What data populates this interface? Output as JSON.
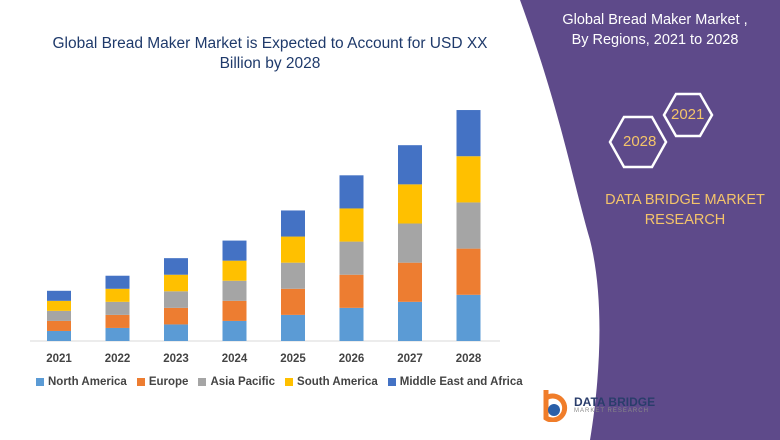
{
  "chart_data": {
    "type": "bar",
    "stacked": true,
    "title": "Global Bread Maker Market is Expected to Account for USD XX Billion by 2028",
    "categories": [
      "2021",
      "2022",
      "2023",
      "2024",
      "2025",
      "2026",
      "2027",
      "2028"
    ],
    "series": [
      {
        "name": "North America",
        "color": "#5b9bd5",
        "values": [
          10,
          13,
          16.5,
          20,
          26,
          33,
          39,
          46
        ]
      },
      {
        "name": "Europe",
        "color": "#ed7d31",
        "values": [
          10,
          13,
          16.5,
          20,
          26,
          33,
          39,
          46
        ]
      },
      {
        "name": "Asia Pacific",
        "color": "#a5a5a5",
        "values": [
          10,
          13,
          16.5,
          20,
          26,
          33,
          39,
          46
        ]
      },
      {
        "name": "South America",
        "color": "#ffc000",
        "values": [
          10,
          13,
          16.5,
          20,
          26,
          33,
          39,
          46
        ]
      },
      {
        "name": "Middle East and Africa",
        "color": "#4472c4",
        "values": [
          10,
          13,
          16.5,
          20,
          26,
          33,
          39,
          46
        ]
      }
    ],
    "ylim": [
      0,
      240
    ],
    "y_axis_shown": false,
    "grid": false,
    "legend_placement": "bottom"
  },
  "side_panel": {
    "title_line1": "Global Bread Maker Market ,",
    "title_line2": "By Regions,  2021 to 2028",
    "hex_start": "2021",
    "hex_end": "2028",
    "brand_line1": "DATA BRIDGE MARKET",
    "brand_line2": "RESEARCH",
    "color": "#5e4a8a",
    "accent": "#f4c46a"
  },
  "logo": {
    "name": "DATA BRIDGE",
    "sub": "MARKET RESEARCH"
  }
}
